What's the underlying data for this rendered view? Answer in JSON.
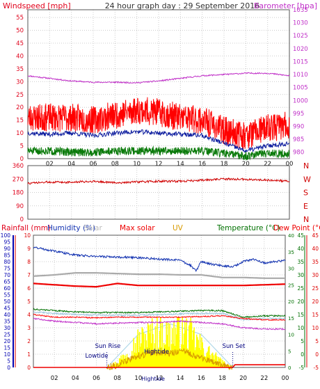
{
  "header": {
    "windspeed_label": "Windspeed [mph]",
    "title": "24 hour graph day : 29 September 2016",
    "barometer_label": "Barometer [hpa]"
  },
  "panel2": {
    "direction_labels": [
      "N",
      "W",
      "S",
      "E",
      "N"
    ]
  },
  "panel3": {
    "legend": {
      "rainfall": "Rainfall (mm)",
      "humidity": "Humidity (%)",
      "solar": "Solar",
      "max_solar": "Max solar",
      "uv": "UV",
      "temperature": "Temperature (°C)",
      "dew_point": "Dew Point (°C)"
    },
    "annotations": {
      "sun_rise": "Sun Rise",
      "sun_set": "Sun Set",
      "lowtide": "Lowtide",
      "hightide": "Hightide",
      "hightide2": "Hightide"
    }
  },
  "colors": {
    "windspeed_axis": "#e0001a",
    "barometer": "#c030c8",
    "gust": "#ff0000",
    "avg_wind": "#0a1a9e",
    "direction": "#d00000",
    "min_wind": "#0a7a0a",
    "rain_axis": "#0000b0",
    "humidity": "#1030b0",
    "solar": "#aaaaaa",
    "max_solar": "#ee0000",
    "uv": "#d89a00",
    "temperature": "#007000",
    "dew_point": "#ff0000",
    "grid": "#cccccc",
    "sun_yellow": "#ffff00",
    "daylight": "#b0d8e8"
  },
  "chart_data": [
    {
      "type": "line",
      "x_unit": "hour",
      "x_ticks": [
        "02",
        "04",
        "06",
        "08",
        "10",
        "12",
        "14",
        "16",
        "18",
        "20",
        "22",
        "00"
      ],
      "left_axis": {
        "ticks": [
          "0",
          "5",
          "10",
          "15",
          "20",
          "25",
          "30",
          "35",
          "40",
          "45",
          "50",
          "55"
        ],
        "ylim": [
          0,
          58
        ]
      },
      "right_axis": {
        "ticks": [
          "980",
          "985",
          "990",
          "995",
          "1000",
          "1005",
          "1010",
          "1015",
          "1020",
          "1025",
          "1030",
          "1035"
        ],
        "ylim": [
          977.5,
          1035
        ]
      },
      "series": [
        {
          "kind": "barometer",
          "axis": "right",
          "x": [
            0,
            2,
            4,
            6,
            8,
            10,
            12,
            14,
            16,
            18,
            20,
            22,
            24
          ],
          "values": [
            1009.5,
            1008.5,
            1007.5,
            1007,
            1007,
            1006.8,
            1007.5,
            1008.5,
            1009.5,
            1010,
            1010.5,
            1010.5,
            1009.5
          ]
        },
        {
          "kind": "gust",
          "axis": "left",
          "x": [
            0,
            2,
            4,
            6,
            8,
            10,
            12,
            14,
            16,
            18,
            20,
            22,
            24
          ],
          "values": [
            16,
            16,
            16,
            15,
            17,
            19,
            18,
            16,
            15,
            11,
            9,
            12,
            13
          ]
        },
        {
          "kind": "average",
          "axis": "left",
          "x": [
            0,
            2,
            4,
            6,
            8,
            10,
            12,
            14,
            16,
            18,
            20,
            22,
            24
          ],
          "values": [
            10,
            9.5,
            10,
            9,
            10,
            10.5,
            10,
            9.5,
            9,
            6,
            3,
            5,
            6
          ]
        },
        {
          "kind": "minimum",
          "axis": "left",
          "x": [
            0,
            2,
            4,
            6,
            8,
            10,
            12,
            14,
            16,
            18,
            20,
            22,
            24
          ],
          "values": [
            3,
            3,
            2.5,
            2.5,
            3,
            3,
            3,
            3,
            3,
            2,
            1,
            2,
            2
          ]
        }
      ]
    },
    {
      "type": "line",
      "x_unit": "hour",
      "y_ticks": [
        "0",
        "90",
        "180",
        "270",
        "360"
      ],
      "ylim": [
        0,
        360
      ],
      "series": [
        {
          "kind": "direction",
          "x": [
            0,
            2,
            4,
            6,
            8,
            10,
            12,
            14,
            16,
            18,
            20,
            22,
            24
          ],
          "values": [
            240,
            250,
            248,
            255,
            245,
            250,
            255,
            255,
            262,
            270,
            268,
            262,
            255
          ]
        }
      ]
    },
    {
      "type": "line",
      "x_unit": "hour",
      "x_ticks": [
        "02",
        "04",
        "06",
        "08",
        "10",
        "12",
        "14",
        "16",
        "18",
        "20",
        "22",
        "00"
      ],
      "rain_axis": {
        "ticks": [
          "0",
          "1",
          "2",
          "3",
          "4",
          "5",
          "6",
          "7",
          "8",
          "9",
          "10"
        ],
        "ylim": [
          0,
          10
        ]
      },
      "humidity_axis": {
        "ticks": [
          "0",
          "5",
          "10",
          "15",
          "20",
          "25",
          "30",
          "35",
          "40",
          "45",
          "50",
          "55",
          "60",
          "65",
          "70",
          "75",
          "80",
          "85",
          "90",
          "95",
          "100"
        ],
        "ylim": [
          0,
          100
        ]
      },
      "solar_axis": {
        "ticks": [
          "0",
          "5",
          "10",
          "15",
          "20",
          "25",
          "30",
          "35",
          "40"
        ],
        "ylim": [
          0,
          40
        ]
      },
      "temperature_axis": {
        "ticks": [
          "-5",
          "0",
          "5",
          "10",
          "15",
          "20",
          "25",
          "30",
          "35",
          "40",
          "45"
        ],
        "ylim": [
          -5,
          45
        ]
      },
      "series": [
        {
          "kind": "humidity",
          "axis": "humidity",
          "x": [
            0,
            2,
            4,
            6,
            8,
            10,
            12,
            14,
            15,
            15.5,
            16,
            17,
            18,
            19,
            20,
            21,
            22,
            23,
            24
          ],
          "values": [
            91,
            88,
            85,
            84,
            83.5,
            83,
            82,
            81,
            77,
            73,
            80,
            78,
            77,
            76,
            80,
            82,
            79,
            80,
            81
          ]
        },
        {
          "kind": "solar_pale",
          "axis": "humidity",
          "x": [
            0,
            2,
            4,
            6,
            8,
            10,
            12,
            14,
            16,
            18,
            20,
            22,
            24
          ],
          "values": [
            69,
            70,
            71.5,
            71.5,
            71,
            70.5,
            70.5,
            70,
            70,
            68,
            68,
            67.5,
            67.5
          ]
        },
        {
          "kind": "max_solar",
          "axis": "humidity",
          "x": [
            0,
            2,
            4,
            6,
            8,
            10,
            12,
            14,
            16,
            18,
            20,
            22,
            24
          ],
          "values": [
            63.5,
            62.5,
            61.5,
            61,
            63.5,
            62,
            62,
            62,
            62,
            62,
            62,
            62.5,
            63
          ]
        },
        {
          "kind": "temperature",
          "axis": "humidity",
          "x": [
            0,
            2,
            4,
            6,
            8,
            10,
            12,
            14,
            16,
            18,
            20,
            22,
            24
          ],
          "values": [
            44,
            43,
            42,
            41.5,
            41.5,
            41.5,
            42,
            42.5,
            43,
            43,
            38,
            39,
            39
          ]
        },
        {
          "kind": "dew_point",
          "axis": "humidity",
          "x": [
            0,
            2,
            4,
            6,
            8,
            10,
            12,
            14,
            16,
            18,
            20,
            22,
            24
          ],
          "values": [
            40,
            38,
            38,
            37.5,
            38,
            38,
            38,
            38,
            38.5,
            39,
            37,
            36,
            36
          ]
        },
        {
          "kind": "uv_max",
          "axis": "humidity",
          "x": [
            0,
            2,
            4,
            6,
            8,
            10,
            12,
            14,
            16,
            18,
            20,
            22,
            24
          ],
          "values": [
            37,
            35,
            34,
            33,
            33.5,
            34,
            34,
            35,
            34,
            33,
            30,
            29,
            29
          ]
        },
        {
          "kind": "solar",
          "axis": "humidity",
          "x": [
            7,
            8,
            9,
            10,
            11,
            12,
            13,
            14,
            15,
            16,
            17,
            18,
            19
          ],
          "values": [
            0,
            5,
            15,
            25,
            30,
            34,
            30,
            36,
            30,
            20,
            12,
            5,
            0
          ]
        },
        {
          "kind": "max_solar_envelope",
          "axis": "humidity",
          "x": [
            7,
            10,
            13,
            16,
            19
          ],
          "values": [
            0,
            25,
            33,
            25,
            0
          ]
        },
        {
          "kind": "rainfall",
          "axis": "humidity",
          "x": [
            0,
            19,
            19.2,
            24
          ],
          "values": [
            0,
            0,
            2,
            2
          ]
        }
      ]
    }
  ]
}
